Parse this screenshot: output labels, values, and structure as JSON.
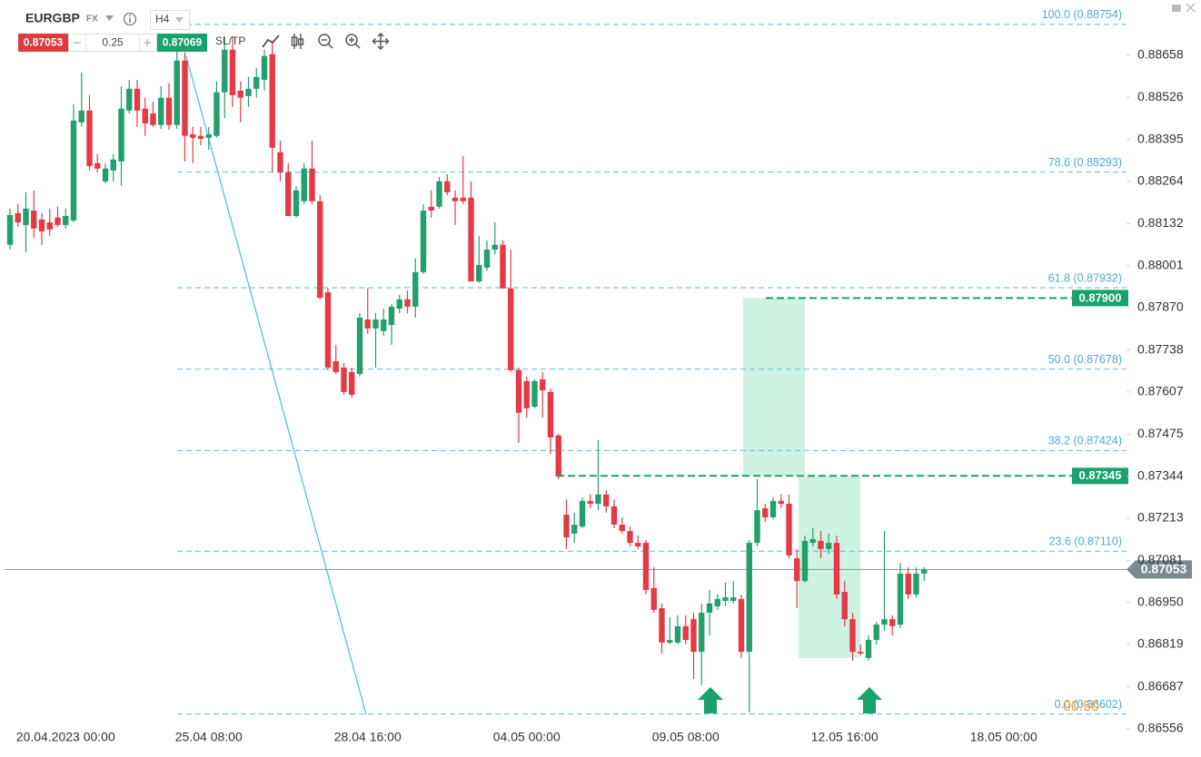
{
  "toolbar": {
    "symbol": "EURGBP",
    "market": "FX",
    "timeframe": "H4",
    "sell_price": "0.87053",
    "volume": "0.25",
    "buy_price": "0.87069",
    "sltp": "SL/TP"
  },
  "countdown": "00:50",
  "chart_data": {
    "type": "candlestick",
    "up_color": "#22a06b",
    "down_color": "#e63946",
    "categories": [
      null,
      null,
      null,
      null,
      null,
      null,
      null,
      "20.04.2023 00:00",
      null,
      null,
      null,
      null,
      null,
      null,
      null,
      null,
      null,
      null,
      null,
      null,
      null,
      null,
      null,
      null,
      null,
      "25.04 08:00",
      null,
      null,
      null,
      null,
      null,
      null,
      null,
      null,
      null,
      null,
      null,
      null,
      null,
      null,
      null,
      null,
      null,
      null,
      null,
      "28.04 16:00",
      null,
      null,
      null,
      null,
      null,
      null,
      null,
      null,
      null,
      null,
      null,
      null,
      null,
      null,
      null,
      null,
      null,
      null,
      null,
      "04.05 00:00",
      null,
      null,
      null,
      null,
      null,
      null,
      null,
      null,
      null,
      null,
      null,
      null,
      null,
      null,
      null,
      null,
      null,
      null,
      null,
      "09.05 08:00",
      null,
      null,
      null,
      null,
      null,
      null,
      null,
      null,
      null,
      null,
      null,
      null,
      null,
      null,
      null,
      null,
      null,
      null,
      null,
      "12.05 16:00",
      null,
      null,
      null,
      null,
      null,
      null,
      null,
      null,
      null,
      null,
      null,
      null,
      null,
      null,
      null,
      null,
      null,
      null,
      null,
      "18.05 00:00"
    ],
    "open": [
      0.88066,
      0.88165,
      0.88128,
      0.88173,
      0.88145,
      0.88136,
      0.88151,
      0.88128,
      0.88142,
      0.88448,
      0.88485,
      0.88321,
      0.88264,
      0.88298,
      0.88326,
      0.88485,
      0.88553,
      0.88491,
      0.88476,
      0.8844,
      0.88525,
      0.8844,
      0.88641,
      0.88411,
      0.88406,
      0.884,
      0.88406,
      0.88542,
      0.88675,
      0.88547,
      0.8853,
      0.88553,
      0.88581,
      0.88661,
      0.88355,
      0.88292,
      0.88156,
      0.88202,
      0.88304,
      0.88202,
      0.87918,
      0.87703,
      0.87683,
      0.87669,
      0.87663,
      0.87833,
      0.87805,
      0.87797,
      0.87816,
      0.87867,
      0.87896,
      0.87873,
      0.87981,
      0.88185,
      0.88185,
      0.88264,
      0.88213,
      0.88213,
      0.88213,
      0.87952,
      0.87995,
      0.88051,
      0.88066,
      0.8793,
      0.87675,
      0.87641,
      0.87561,
      0.87646,
      0.87607,
      0.87471,
      0.87224,
      0.87165,
      0.87187,
      0.87267,
      0.87258,
      0.87287,
      0.8725,
      0.87193,
      0.87173,
      0.87136,
      0.87136,
      0.86995,
      0.86932,
      0.86825,
      0.86825,
      0.86876,
      0.86898,
      0.86796,
      0.86918,
      0.86938,
      0.86955,
      0.86955,
      0.86961,
      0.86796,
      0.87136,
      0.87244,
      0.87216,
      0.87267,
      0.87258,
      0.87088,
      0.87017,
      0.87136,
      0.87142,
      0.87117,
      0.87136,
      0.86983,
      0.86898,
      0.86796,
      0.86777,
      0.86833,
      0.86881,
      0.86898,
      0.86881,
      0.8704,
      0.86975,
      0.8704,
      null,
      null,
      null,
      null,
      null,
      null,
      null,
      null,
      null,
      null
    ],
    "high": [
      0.88179,
      0.88193,
      0.8823,
      0.88236,
      0.88165,
      0.88179,
      0.88185,
      0.88179,
      0.88505,
      0.88604,
      0.88533,
      0.88349,
      0.88321,
      0.88349,
      0.88561,
      0.88581,
      0.88581,
      0.88525,
      0.88513,
      0.88561,
      0.8857,
      0.88675,
      0.88666,
      0.88434,
      0.88434,
      0.88434,
      0.88576,
      0.88717,
      0.88717,
      0.88576,
      0.8859,
      0.88618,
      0.88675,
      0.88703,
      0.88391,
      0.88321,
      0.8825,
      0.88321,
      0.88391,
      0.88221,
      0.8793,
      0.87754,
      0.87697,
      0.87683,
      0.87853,
      0.8793,
      0.87853,
      0.87867,
      0.87882,
      0.8791,
      0.87924,
      0.88023,
      0.88193,
      0.88236,
      0.88278,
      0.88287,
      0.88236,
      0.88343,
      0.88264,
      0.88094,
      0.8808,
      0.88136,
      0.8808,
      0.88051,
      0.87683,
      0.87655,
      0.87646,
      0.87669,
      0.87618,
      0.87476,
      0.87272,
      0.8723,
      0.87278,
      0.87287,
      0.87457,
      0.87301,
      0.87272,
      0.87216,
      0.87187,
      0.87159,
      0.87145,
      0.8706,
      0.86947,
      0.86904,
      0.8691,
      0.8691,
      0.86918,
      0.86947,
      0.86989,
      0.86975,
      0.87012,
      0.87017,
      0.86975,
      0.87145,
      0.87335,
      0.87258,
      0.87278,
      0.87287,
      0.87287,
      0.87117,
      0.87159,
      0.87182,
      0.87173,
      0.87165,
      0.87159,
      0.87017,
      0.86918,
      0.86819,
      0.86847,
      0.8689,
      0.87173,
      0.8691,
      0.87074,
      0.8706,
      0.8706,
      0.8706,
      null,
      null,
      null,
      null,
      null,
      null,
      null,
      null,
      null,
      null
    ],
    "low": [
      0.88051,
      0.88122,
      0.88043,
      0.88088,
      0.88066,
      0.88094,
      0.88122,
      0.88117,
      0.88136,
      0.88434,
      0.88298,
      0.88292,
      0.88258,
      0.88264,
      0.8825,
      0.88476,
      0.88434,
      0.88406,
      0.88434,
      0.88428,
      0.88425,
      0.88428,
      0.88326,
      0.88321,
      0.88377,
      0.88363,
      0.884,
      0.88462,
      0.88496,
      0.88448,
      0.88496,
      0.88525,
      0.88547,
      0.88292,
      0.88264,
      0.88156,
      0.88151,
      0.88193,
      0.88193,
      0.87896,
      0.87675,
      0.87663,
      0.87598,
      0.8759,
      0.87655,
      0.87788,
      0.87683,
      0.87782,
      0.87754,
      0.87853,
      0.87853,
      0.87839,
      0.87975,
      0.88151,
      0.88179,
      0.88221,
      0.88128,
      0.88193,
      0.87952,
      0.87947,
      0.87986,
      0.88037,
      0.8793,
      0.87669,
      0.87448,
      0.87527,
      0.87556,
      0.87527,
      0.87414,
      0.87335,
      0.87117,
      0.87136,
      0.87182,
      0.87244,
      0.87238,
      0.8723,
      0.87182,
      0.87165,
      0.87125,
      0.87117,
      0.86975,
      0.86918,
      0.86791,
      0.86819,
      0.86819,
      0.86819,
      0.86711,
      0.86692,
      0.86847,
      0.86927,
      0.86938,
      0.86947,
      0.86777,
      0.86607,
      0.87125,
      0.87201,
      0.8721,
      0.87244,
      0.87088,
      0.86932,
      0.87012,
      0.87125,
      0.87088,
      0.87102,
      0.86961,
      0.86876,
      0.86768,
      0.86785,
      0.86768,
      0.86819,
      0.86862,
      0.86847,
      0.8687,
      0.86961,
      0.86966,
      0.87017,
      null,
      null,
      null,
      null,
      null,
      null,
      null,
      null,
      null,
      null
    ],
    "close": [
      0.88159,
      0.88136,
      0.88179,
      0.88117,
      0.88108,
      0.88114,
      0.88128,
      0.88156,
      0.88454,
      0.88485,
      0.88312,
      0.88304,
      0.88304,
      0.88332,
      0.88491,
      0.88553,
      0.88485,
      0.88445,
      0.8844,
      0.88525,
      0.8844,
      0.88641,
      0.88406,
      0.884,
      0.88397,
      0.88411,
      0.88542,
      0.88675,
      0.88533,
      0.88525,
      0.88553,
      0.8859,
      0.88655,
      0.88369,
      0.88292,
      0.88156,
      0.88236,
      0.88304,
      0.88202,
      0.87901,
      0.87683,
      0.87669,
      0.87607,
      0.87598,
      0.87839,
      0.87805,
      0.87833,
      0.87833,
      0.87873,
      0.87896,
      0.87873,
      0.87981,
      0.88173,
      0.88173,
      0.88264,
      0.8823,
      0.88202,
      0.88202,
      0.87952,
      0.88003,
      0.88051,
      0.88066,
      0.8793,
      0.87675,
      0.87542,
      0.87556,
      0.87641,
      0.87612,
      0.87465,
      0.87343,
      0.87153,
      0.87193,
      0.87267,
      0.87258,
      0.87287,
      0.8725,
      0.87193,
      0.87173,
      0.87136,
      0.87125,
      0.86989,
      0.86927,
      0.86825,
      0.86833,
      0.86876,
      0.86833,
      0.86796,
      0.86918,
      0.86947,
      0.86961,
      0.86966,
      0.86966,
      0.86796,
      0.87136,
      0.87238,
      0.87216,
      0.87267,
      0.87258,
      0.87097,
      0.87017,
      0.87142,
      0.87148,
      0.87117,
      0.87136,
      0.86975,
      0.86898,
      0.86796,
      0.86791,
      0.86833,
      0.86881,
      0.86898,
      0.86876,
      0.8704,
      0.86975,
      0.8704,
      0.87053,
      null,
      null,
      null,
      null,
      null,
      null,
      null,
      null,
      null,
      null
    ],
    "ylim": [
      0.8655,
      0.8883
    ],
    "yticks": [
      0.88658,
      0.88526,
      0.88395,
      0.88264,
      0.88132,
      {
        "value": 0.88001,
        "label": "0.88001"
      },
      {
        "value": 0.8787,
        "label": "0.87870"
      },
      0.87738,
      0.87607,
      0.87475,
      0.87344,
      0.87213,
      0.87081,
      {
        "value": 0.8695,
        "label": "0.86950"
      },
      0.86819,
      0.86687,
      0.86556
    ],
    "grid": false,
    "fib_levels": [
      {
        "value": 0.88754,
        "label": "100.0 (0.88754)"
      },
      {
        "value": 0.88293,
        "label": "78.6 (0.88293)"
      },
      {
        "value": 0.87932,
        "label": "61.8 (0.87932)"
      },
      {
        "value": 0.87678,
        "label": "50.0 (0.87678)"
      },
      {
        "value": 0.87424,
        "label": "38.2 (0.87424)"
      },
      {
        "value": 0.8711,
        "label": "23.6 (0.87110)"
      },
      {
        "value": 0.86602,
        "label": "0.0 (0.86602)"
      }
    ],
    "fib_color": "#5bbbe3",
    "levels": [
      {
        "value": 0.879,
        "label": "0.87900"
      },
      {
        "value": 0.87345,
        "label": "0.87345"
      }
    ],
    "level_color": "#17a36b",
    "last_price": {
      "value": 0.87053,
      "label": "0.87053"
    },
    "zones": [
      {
        "top": 0.879,
        "bottom": 0.87345
      },
      {
        "top": 0.87345,
        "bottom": 0.86777
      }
    ]
  }
}
